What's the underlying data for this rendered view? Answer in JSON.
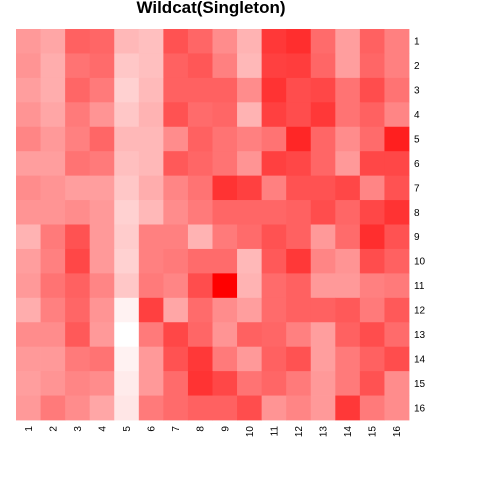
{
  "chart_data": {
    "type": "heatmap",
    "title": "Wildcat(Singleton)",
    "xlabel": "",
    "ylabel": "",
    "x_categories": [
      "1",
      "2",
      "3",
      "4",
      "5",
      "6",
      "7",
      "8",
      "9",
      "10",
      "11",
      "12",
      "13",
      "14",
      "15",
      "16"
    ],
    "y_categories": [
      "1",
      "2",
      "3",
      "4",
      "5",
      "6",
      "7",
      "8",
      "9",
      "10",
      "11",
      "12",
      "13",
      "14",
      "15",
      "16"
    ],
    "color_scale": {
      "low": "#ffffff",
      "high": "#ff0000",
      "min": 0,
      "max": 1
    },
    "values": [
      [
        0.4,
        0.35,
        0.62,
        0.6,
        0.28,
        0.25,
        0.68,
        0.6,
        0.45,
        0.3,
        0.78,
        0.82,
        0.58,
        0.38,
        0.62,
        0.5
      ],
      [
        0.42,
        0.32,
        0.55,
        0.58,
        0.22,
        0.25,
        0.62,
        0.66,
        0.5,
        0.28,
        0.75,
        0.76,
        0.6,
        0.38,
        0.6,
        0.5
      ],
      [
        0.38,
        0.32,
        0.6,
        0.52,
        0.18,
        0.27,
        0.62,
        0.62,
        0.62,
        0.45,
        0.8,
        0.7,
        0.72,
        0.55,
        0.7,
        0.55
      ],
      [
        0.42,
        0.35,
        0.52,
        0.42,
        0.22,
        0.3,
        0.68,
        0.58,
        0.6,
        0.3,
        0.75,
        0.7,
        0.78,
        0.55,
        0.62,
        0.48
      ],
      [
        0.48,
        0.4,
        0.5,
        0.6,
        0.28,
        0.28,
        0.45,
        0.62,
        0.55,
        0.5,
        0.55,
        0.85,
        0.6,
        0.45,
        0.58,
        0.88
      ],
      [
        0.38,
        0.38,
        0.55,
        0.52,
        0.25,
        0.28,
        0.65,
        0.6,
        0.55,
        0.42,
        0.75,
        0.72,
        0.6,
        0.4,
        0.72,
        0.72
      ],
      [
        0.45,
        0.42,
        0.38,
        0.38,
        0.22,
        0.32,
        0.48,
        0.55,
        0.8,
        0.75,
        0.5,
        0.68,
        0.68,
        0.72,
        0.48,
        0.68
      ],
      [
        0.42,
        0.42,
        0.45,
        0.4,
        0.18,
        0.28,
        0.45,
        0.52,
        0.6,
        0.6,
        0.6,
        0.62,
        0.7,
        0.6,
        0.72,
        0.8
      ],
      [
        0.3,
        0.52,
        0.68,
        0.4,
        0.2,
        0.5,
        0.5,
        0.3,
        0.52,
        0.58,
        0.68,
        0.62,
        0.4,
        0.58,
        0.82,
        0.68
      ],
      [
        0.38,
        0.5,
        0.72,
        0.4,
        0.18,
        0.5,
        0.52,
        0.58,
        0.58,
        0.28,
        0.65,
        0.78,
        0.48,
        0.42,
        0.7,
        0.62
      ],
      [
        0.4,
        0.55,
        0.62,
        0.48,
        0.22,
        0.52,
        0.48,
        0.7,
        1.0,
        0.3,
        0.58,
        0.62,
        0.4,
        0.4,
        0.5,
        0.52
      ],
      [
        0.32,
        0.5,
        0.6,
        0.42,
        0.05,
        0.75,
        0.35,
        0.58,
        0.45,
        0.38,
        0.58,
        0.62,
        0.62,
        0.65,
        0.52,
        0.65
      ],
      [
        0.45,
        0.45,
        0.65,
        0.4,
        0.0,
        0.52,
        0.72,
        0.6,
        0.42,
        0.62,
        0.6,
        0.5,
        0.38,
        0.62,
        0.7,
        0.58
      ],
      [
        0.4,
        0.4,
        0.52,
        0.55,
        0.05,
        0.4,
        0.68,
        0.78,
        0.52,
        0.4,
        0.62,
        0.68,
        0.38,
        0.52,
        0.62,
        0.7
      ],
      [
        0.38,
        0.42,
        0.48,
        0.45,
        0.08,
        0.4,
        0.58,
        0.8,
        0.72,
        0.55,
        0.6,
        0.52,
        0.4,
        0.52,
        0.68,
        0.45
      ],
      [
        0.4,
        0.52,
        0.45,
        0.35,
        0.1,
        0.52,
        0.58,
        0.62,
        0.62,
        0.7,
        0.42,
        0.48,
        0.4,
        0.78,
        0.52,
        0.45
      ]
    ],
    "grid": false,
    "legend": "none"
  }
}
